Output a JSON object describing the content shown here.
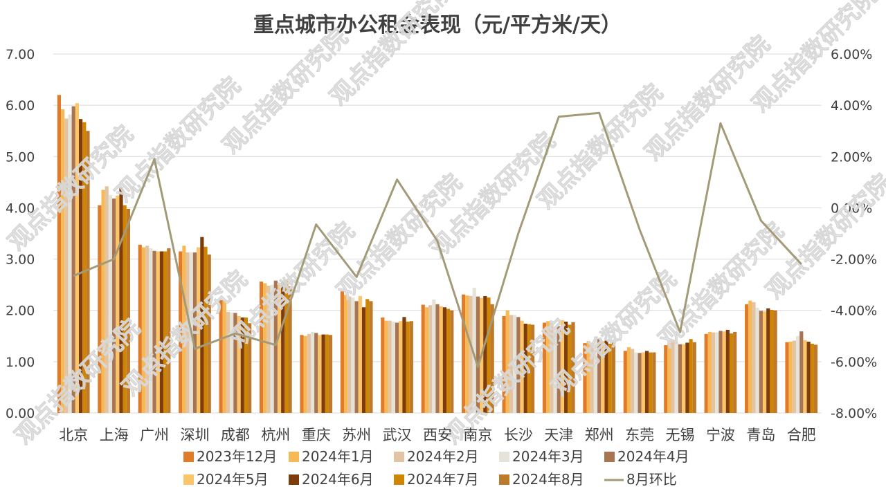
{
  "chart_data": {
    "type": "bar",
    "title": "重点城市办公租金表现（元/平方米/天）",
    "categories": [
      "北京",
      "上海",
      "广州",
      "深圳",
      "成都",
      "杭州",
      "重庆",
      "苏州",
      "武汉",
      "西安",
      "南京",
      "长沙",
      "天津",
      "郑州",
      "东莞",
      "无锡",
      "宁波",
      "青岛",
      "合肥"
    ],
    "y_left": {
      "min": 0,
      "max": 7,
      "step": 1,
      "ticks": [
        "0.00",
        "1.00",
        "2.00",
        "3.00",
        "4.00",
        "5.00",
        "6.00",
        "7.00"
      ]
    },
    "y_right": {
      "min": -8,
      "max": 6,
      "step": 2,
      "ticks": [
        "-8.00%",
        "-6.00%",
        "-4.00%",
        "-2.00%",
        "0.00%",
        "2.00%",
        "4.00%",
        "6.00%"
      ]
    },
    "series": [
      {
        "name": "2023年12月",
        "type": "bar",
        "color": "#E07B29",
        "values": [
          6.2,
          4.05,
          3.28,
          3.15,
          2.2,
          2.56,
          1.52,
          2.37,
          1.86,
          2.11,
          2.31,
          1.89,
          1.76,
          1.36,
          1.21,
          1.32,
          1.54,
          2.12,
          1.38
        ]
      },
      {
        "name": "2024年1月",
        "type": "bar",
        "color": "#F7B955",
        "values": [
          5.92,
          4.35,
          3.23,
          3.26,
          2.19,
          2.53,
          1.5,
          2.3,
          1.8,
          2.06,
          2.29,
          2.0,
          1.79,
          1.4,
          1.28,
          1.37,
          1.58,
          2.19,
          1.39
        ]
      },
      {
        "name": "2024年2月",
        "type": "bar",
        "color": "#E2C4A4",
        "values": [
          5.74,
          4.42,
          3.26,
          3.13,
          1.97,
          2.48,
          1.54,
          2.27,
          1.8,
          2.1,
          2.28,
          1.91,
          1.75,
          1.35,
          1.25,
          1.43,
          1.57,
          2.16,
          1.41
        ]
      },
      {
        "name": "2024年3月",
        "type": "bar",
        "color": "#E6E4D8",
        "values": [
          5.82,
          4.25,
          3.21,
          3.13,
          1.96,
          2.5,
          1.58,
          2.25,
          1.78,
          2.21,
          2.44,
          1.91,
          1.66,
          1.49,
          1.18,
          1.39,
          1.57,
          2.05,
          1.5
        ]
      },
      {
        "name": "2024年4月",
        "type": "bar",
        "color": "#A87452",
        "values": [
          5.98,
          4.18,
          3.16,
          3.13,
          1.95,
          2.58,
          1.56,
          2.18,
          1.76,
          2.12,
          2.27,
          1.87,
          1.69,
          1.44,
          1.17,
          1.34,
          1.6,
          1.99,
          1.59
        ]
      },
      {
        "name": "2024年5月",
        "type": "bar",
        "color": "#FCC56A",
        "values": [
          6.04,
          4.24,
          3.15,
          3.23,
          1.89,
          2.52,
          1.52,
          2.28,
          1.79,
          2.08,
          2.24,
          1.8,
          1.81,
          1.4,
          1.18,
          1.34,
          1.59,
          1.98,
          1.42
        ]
      },
      {
        "name": "2024年6月",
        "type": "bar",
        "color": "#7E3C0D",
        "values": [
          5.73,
          4.4,
          3.15,
          3.43,
          1.86,
          2.56,
          1.53,
          2.06,
          1.87,
          2.06,
          2.28,
          1.74,
          1.78,
          1.41,
          1.21,
          1.37,
          1.62,
          2.04,
          1.39
        ]
      },
      {
        "name": "2024年7月",
        "type": "bar",
        "color": "#D08500",
        "values": [
          5.67,
          4.05,
          3.15,
          3.24,
          1.86,
          2.6,
          1.53,
          2.22,
          1.78,
          2.03,
          2.25,
          1.73,
          1.72,
          1.35,
          1.18,
          1.44,
          1.55,
          2.01,
          1.35
        ]
      },
      {
        "name": "2024年8月",
        "type": "bar",
        "color": "#BE7A2C",
        "values": [
          5.5,
          3.98,
          3.21,
          3.09,
          1.75,
          2.47,
          1.52,
          2.18,
          1.79,
          2.0,
          2.12,
          1.72,
          1.77,
          1.37,
          1.18,
          1.38,
          1.58,
          2.0,
          1.33
        ]
      },
      {
        "name": "8月环比",
        "type": "line",
        "color": "#A39A78",
        "axis": "right",
        "values": [
          -2.65,
          -2.0,
          1.9,
          -5.5,
          -4.9,
          -5.35,
          -0.65,
          -2.7,
          1.1,
          -1.3,
          -6.2,
          -1.0,
          3.55,
          3.7,
          -0.85,
          -4.85,
          3.3,
          -0.5,
          -2.2
        ]
      }
    ],
    "legend": "bottom",
    "grid": true
  },
  "watermark": "观点指数研究院"
}
